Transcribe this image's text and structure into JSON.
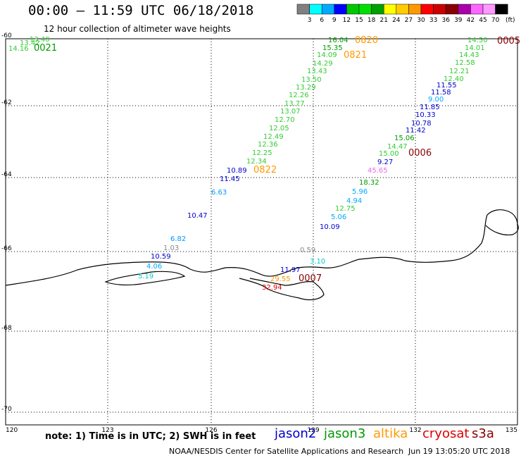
{
  "header": {
    "title": "00:00 – 11:59 UTC 06/18/2018",
    "subtitle": "12 hour collection of altimeter wave heights"
  },
  "colorbar": {
    "ticks": [
      "3",
      "6",
      "9",
      "12",
      "15",
      "18",
      "21",
      "24",
      "27",
      "30",
      "33",
      "36",
      "39",
      "42",
      "45",
      "70"
    ],
    "unit": "(ft)",
    "colors": [
      "#808080",
      "#00ffff",
      "#00aaff",
      "#0000ff",
      "#00c800",
      "#00e000",
      "#00a000",
      "#ffff00",
      "#ffcc00",
      "#ff9900",
      "#ff0000",
      "#cc0000",
      "#880000",
      "#aa00aa",
      "#ff66ff",
      "#ff99ff",
      "#000000"
    ]
  },
  "axes": {
    "lat_labels": [
      "-60",
      "-62",
      "-64",
      "-66",
      "-68",
      "-70"
    ],
    "lon_labels": [
      "120",
      "123",
      "126",
      "129",
      "132",
      "135"
    ]
  },
  "observations": [
    {
      "text": "13.40",
      "color": "#33cc33"
    },
    {
      "text": "13.42",
      "color": "#33cc33"
    },
    {
      "text": "14.16",
      "color": "#33cc33"
    },
    {
      "text": "0021",
      "color": "#009900",
      "time": true
    },
    {
      "text": "16.04",
      "color": "#009900"
    },
    {
      "text": "15.35",
      "color": "#009900"
    },
    {
      "text": "14.09",
      "color": "#33cc33"
    },
    {
      "text": "14.29",
      "color": "#33cc33"
    },
    {
      "text": "13.43",
      "color": "#33cc33"
    },
    {
      "text": "13.50",
      "color": "#33cc33"
    },
    {
      "text": "13.29",
      "color": "#33cc33"
    },
    {
      "text": "12.26",
      "color": "#33cc33"
    },
    {
      "text": "13.77",
      "color": "#33cc33"
    },
    {
      "text": "13.07",
      "color": "#33cc33"
    },
    {
      "text": "12.70",
      "color": "#33cc33"
    },
    {
      "text": "12.05",
      "color": "#33cc33"
    },
    {
      "text": "12.49",
      "color": "#33cc33"
    },
    {
      "text": "12.36",
      "color": "#33cc33"
    },
    {
      "text": "12.25",
      "color": "#33cc33"
    },
    {
      "text": "12.34",
      "color": "#33cc33"
    },
    {
      "text": "10.89",
      "color": "#0000cc"
    },
    {
      "text": "11.45",
      "color": "#0000cc"
    },
    {
      "text": "6.63",
      "color": "#0099ff"
    },
    {
      "text": "10.47",
      "color": "#0000cc"
    },
    {
      "text": "6.82",
      "color": "#0099ff"
    },
    {
      "text": "1.03",
      "color": "#888888"
    },
    {
      "text": "10.59",
      "color": "#0000cc"
    },
    {
      "text": "4.06",
      "color": "#00aaff"
    },
    {
      "text": "5.19",
      "color": "#00cccc"
    },
    {
      "text": "0820",
      "color": "#ff9900",
      "time": true
    },
    {
      "text": "0821",
      "color": "#ff9900",
      "time": true
    },
    {
      "text": "0822",
      "color": "#ff9900",
      "time": true
    },
    {
      "text": "14.50",
      "color": "#33cc33"
    },
    {
      "text": "14.01",
      "color": "#33cc33"
    },
    {
      "text": "14.43",
      "color": "#33cc33"
    },
    {
      "text": "12.58",
      "color": "#33cc33"
    },
    {
      "text": "12.21",
      "color": "#33cc33"
    },
    {
      "text": "12.40",
      "color": "#33cc33"
    },
    {
      "text": "11.55",
      "color": "#0000cc"
    },
    {
      "text": "11.58",
      "color": "#0000cc"
    },
    {
      "text": "9.00",
      "color": "#00aaff"
    },
    {
      "text": "11.85",
      "color": "#0000cc"
    },
    {
      "text": "10.33",
      "color": "#0000cc"
    },
    {
      "text": "10.78",
      "color": "#0000cc"
    },
    {
      "text": "11.42",
      "color": "#0000cc"
    },
    {
      "text": "15.06",
      "color": "#009900"
    },
    {
      "text": "14.47",
      "color": "#33cc33"
    },
    {
      "text": "15.00",
      "color": "#33cc33"
    },
    {
      "text": "9.27",
      "color": "#0000cc"
    },
    {
      "text": "45.65",
      "color": "#ee66ee"
    },
    {
      "text": "18.32",
      "color": "#009900"
    },
    {
      "text": "5.96",
      "color": "#00aaff"
    },
    {
      "text": "4.94",
      "color": "#00aaff"
    },
    {
      "text": "12.75",
      "color": "#33cc33"
    },
    {
      "text": "5.06",
      "color": "#00aaff"
    },
    {
      "text": "10.09",
      "color": "#0000cc"
    },
    {
      "text": "0.59",
      "color": "#888888"
    },
    {
      "text": "3.10",
      "color": "#00cccc"
    },
    {
      "text": "11.97",
      "color": "#0000cc"
    },
    {
      "text": "29.55",
      "color": "#ff9900"
    },
    {
      "text": "32.94",
      "color": "#dd0000"
    },
    {
      "text": "0005",
      "color": "#880000",
      "time": true
    },
    {
      "text": "0006",
      "color": "#880000",
      "time": true
    },
    {
      "text": "0007",
      "color": "#880000",
      "time": true
    }
  ],
  "footer": {
    "note": "note:  1) Time is in UTC;  2) SWH is in feet",
    "satellites": [
      {
        "name": "jason2",
        "color": "#0000cc"
      },
      {
        "name": "jason3",
        "color": "#009900"
      },
      {
        "name": "altika",
        "color": "#ff9900"
      },
      {
        "name": "cryosat",
        "color": "#dd0000"
      },
      {
        "name": "s3a",
        "color": "#880000"
      }
    ],
    "credit": "NOAA/NESDIS Center for Satellite Applications and Research",
    "timestamp": "Jun 19 13:05:20 UTC 2018"
  }
}
